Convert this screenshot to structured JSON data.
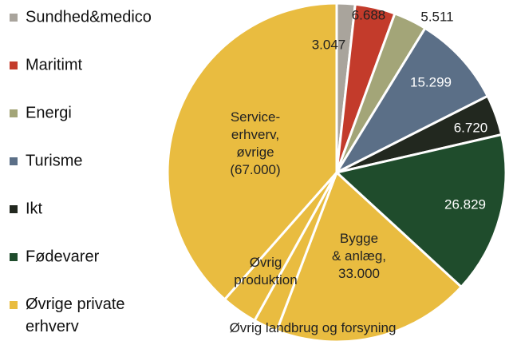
{
  "chart_data": {
    "type": "pie",
    "categories": [
      "Sundhed&medico",
      "Maritimt",
      "Energi",
      "Turisme",
      "Ikt",
      "Fødevarer",
      "Bygge\n& anlæg,\n33.000",
      "Øvrig landbrug  og forsyning",
      "Øvrig\nproduktion",
      "Service-\nerhverv,\nøvrige\n(67.000)"
    ],
    "values": [
      3047,
      6688,
      5511,
      15299,
      6720,
      26829,
      33000,
      4000,
      6000,
      67000
    ],
    "value_labels": [
      "3.047",
      "6.688",
      "5.511",
      "15.299",
      "6.720",
      "26.829",
      null,
      null,
      null,
      null
    ],
    "colors": [
      "#a9a49c",
      "#c33b2b",
      "#a3a578",
      "#5b6f87",
      "#22281f",
      "#1f4c2c",
      "#e9bc40",
      "#e9bc40",
      "#e9bc40",
      "#e9bc40"
    ],
    "group_label": "Øvrige private\nerhverv",
    "group_color": "#e9bc40"
  }
}
